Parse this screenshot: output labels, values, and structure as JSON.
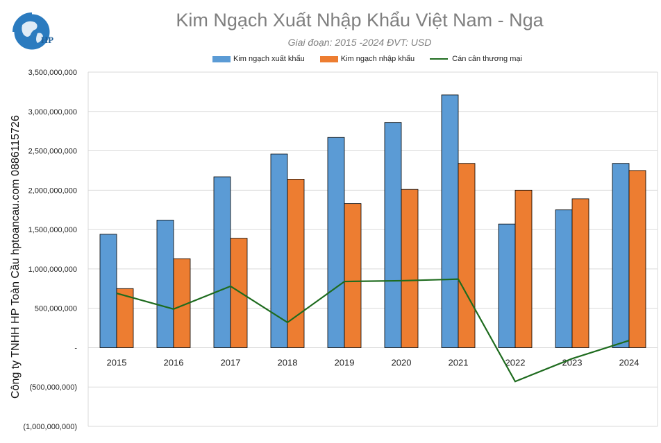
{
  "colors": {
    "export": "#5b9bd5",
    "import": "#ed7d31",
    "balance": "#1e6b1e",
    "grid": "#d9d9d9",
    "title": "#7f7f7f"
  },
  "logo": {
    "text": "HP",
    "icon": "globe-logo-icon"
  },
  "side_label": "Công ty TNHH HP Toàn Cầu hptoancau.com 0886115726",
  "chart_data": {
    "type": "bar",
    "title": "Kim Ngạch Xuất Nhập Khẩu Việt Nam - Nga",
    "subtitle": "Giai đoạn: 2015 -2024  ĐVT: USD",
    "categories": [
      "2015",
      "2016",
      "2017",
      "2018",
      "2019",
      "2020",
      "2021",
      "2022",
      "2023",
      "2024"
    ],
    "series": [
      {
        "name": "Kim ngạch xuất khẩu",
        "type": "bar",
        "values": [
          1440000000,
          1620000000,
          2170000000,
          2460000000,
          2670000000,
          2860000000,
          3210000000,
          1570000000,
          1750000000,
          2340000000
        ]
      },
      {
        "name": "Kim ngạch nhập khẩu",
        "type": "bar",
        "values": [
          750000000,
          1130000000,
          1390000000,
          2140000000,
          1830000000,
          2010000000,
          2340000000,
          2000000000,
          1890000000,
          2250000000
        ]
      },
      {
        "name": "Cán cân thương mại",
        "type": "line",
        "values": [
          690000000,
          490000000,
          780000000,
          320000000,
          840000000,
          850000000,
          870000000,
          -430000000,
          -140000000,
          90000000
        ]
      }
    ],
    "ylim": [
      -1000000000,
      3500000000
    ],
    "yticks": [
      3500000000,
      3000000000,
      2500000000,
      2000000000,
      1500000000,
      1000000000,
      500000000,
      0,
      -500000000,
      -1000000000
    ],
    "ytick_labels": [
      "3,500,000,000",
      "3,000,000,000",
      "2,500,000,000",
      "2,000,000,000",
      "1,500,000,000",
      "1,000,000,000",
      "500,000,000",
      "-",
      "(500,000,000)",
      "(1,000,000,000)"
    ],
    "xlabel": "",
    "ylabel": "",
    "grid": true,
    "legend": "top"
  }
}
